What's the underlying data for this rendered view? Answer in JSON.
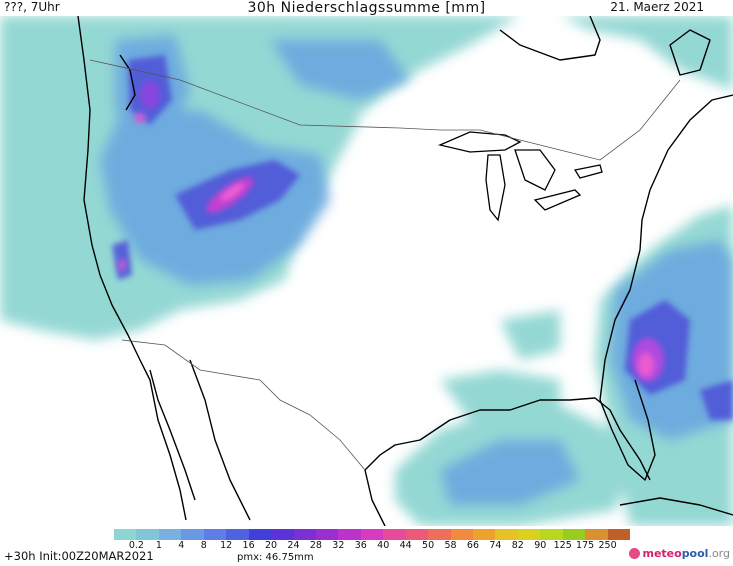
{
  "header": {
    "left": "???, 7Uhr",
    "title": "30h Niederschlagssumme [mm]",
    "right": "21. Maerz 2021"
  },
  "legend": {
    "ticks": [
      "0.2",
      "1",
      "4",
      "8",
      "12",
      "16",
      "20",
      "24",
      "28",
      "32",
      "36",
      "40",
      "44",
      "50",
      "58",
      "66",
      "74",
      "82",
      "90",
      "125",
      "175",
      "250"
    ],
    "colors": [
      "#8fd6d2",
      "#82c4d8",
      "#78b0e0",
      "#6a98e4",
      "#5d7ee6",
      "#4f62e2",
      "#4040d8",
      "#5a34d8",
      "#7a30d4",
      "#9a2ed0",
      "#be32cc",
      "#d83ac0",
      "#e84a9c",
      "#ec5a7a",
      "#ef6e5a",
      "#f08a3e",
      "#eea22e",
      "#e8c028",
      "#d8d21e",
      "#b8d820",
      "#98cc1e",
      "#d89030",
      "#c06028"
    ]
  },
  "footer": {
    "left": "+30h Init:00Z20MAR2021",
    "pmx": "pmx: 46.75mm",
    "logo_part1": "meteo",
    "logo_part2": "pool",
    "logo_part3": ".org"
  }
}
